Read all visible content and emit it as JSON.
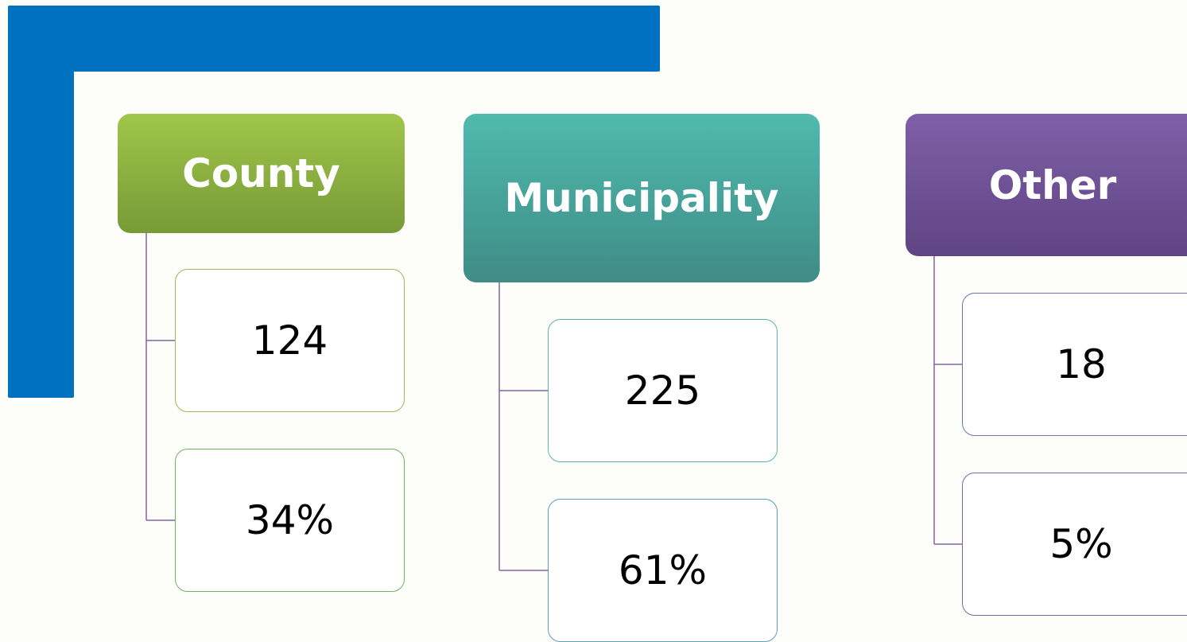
{
  "groups": [
    {
      "title": "County",
      "count": "124",
      "share": "34%"
    },
    {
      "title": "Municipality",
      "count": "225",
      "share": "61%"
    },
    {
      "title": "Other",
      "count": "18",
      "share": "5%"
    }
  ]
}
